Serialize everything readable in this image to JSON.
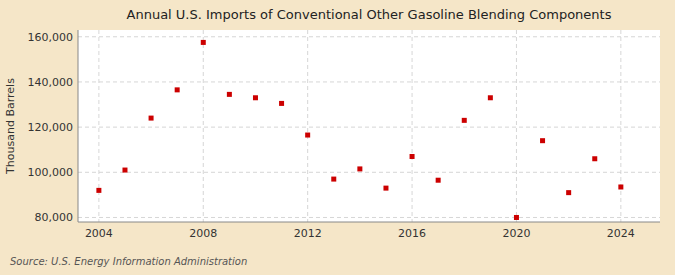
{
  "chart_data": {
    "type": "scatter",
    "title": "Annual U.S. Imports of Conventional Other Gasoline Blending Components",
    "y_label": "Thousand Barrels",
    "source": "Source: U.S. Energy Information Administration",
    "x": [
      2004,
      2005,
      2006,
      2007,
      2008,
      2009,
      2010,
      2011,
      2012,
      2013,
      2014,
      2015,
      2016,
      2017,
      2018,
      2019,
      2020,
      2021,
      2022,
      2023,
      2024
    ],
    "values": [
      92000,
      101000,
      124000,
      136500,
      157500,
      134500,
      133000,
      130500,
      116500,
      97000,
      101500,
      93000,
      107000,
      96500,
      123000,
      133000,
      80000,
      114000,
      91000,
      106000,
      93500
    ],
    "color": "#cc0000",
    "marker": "square",
    "xlim": [
      2003.2,
      2025.5
    ],
    "xticks": [
      2004,
      2008,
      2012,
      2016,
      2020,
      2024
    ],
    "ylim": [
      78000,
      163000
    ],
    "yticks": [
      {
        "value": 80000,
        "label": "80,000"
      },
      {
        "value": 100000,
        "label": "100,000"
      },
      {
        "value": 120000,
        "label": "120,000"
      },
      {
        "value": 140000,
        "label": "140,000"
      },
      {
        "value": 160000,
        "label": "160,000"
      }
    ],
    "grid": true
  }
}
